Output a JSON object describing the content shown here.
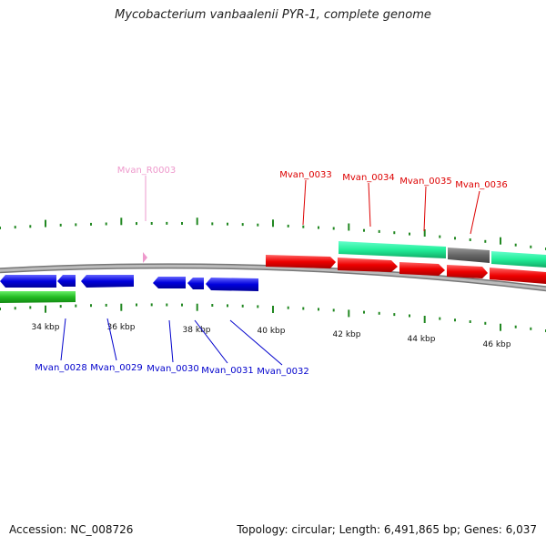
{
  "title": "Mycobacterium vanbaalenii PYR-1, complete genome",
  "footer": {
    "accession": "Accession: NC_008726",
    "stats": "Topology: circular; Length: 6,491,865 bp; Genes: 6,037"
  },
  "colors": {
    "forward_cds": "#ff0000",
    "reverse_cds": "#0000ee",
    "rna": "#ee99cc",
    "tick": "#228822",
    "backbone": "#888888",
    "feature_teal": "#33ffaa",
    "feature_gray": "#666666",
    "feature_green": "#33cc33"
  },
  "scale_labels": [
    "34 kbp",
    "36 kbp",
    "38 kbp",
    "40 kbp",
    "42 kbp",
    "44 kbp",
    "46 kbp"
  ],
  "gene_labels": {
    "top": [
      "Mvan_R0003",
      "Mvan_0033",
      "Mvan_0034",
      "Mvan_0035",
      "Mvan_0036"
    ],
    "bottom": [
      "Mvan_0028",
      "Mvan_0029",
      "Mvan_0030",
      "Mvan_0031",
      "Mvan_0032"
    ]
  }
}
